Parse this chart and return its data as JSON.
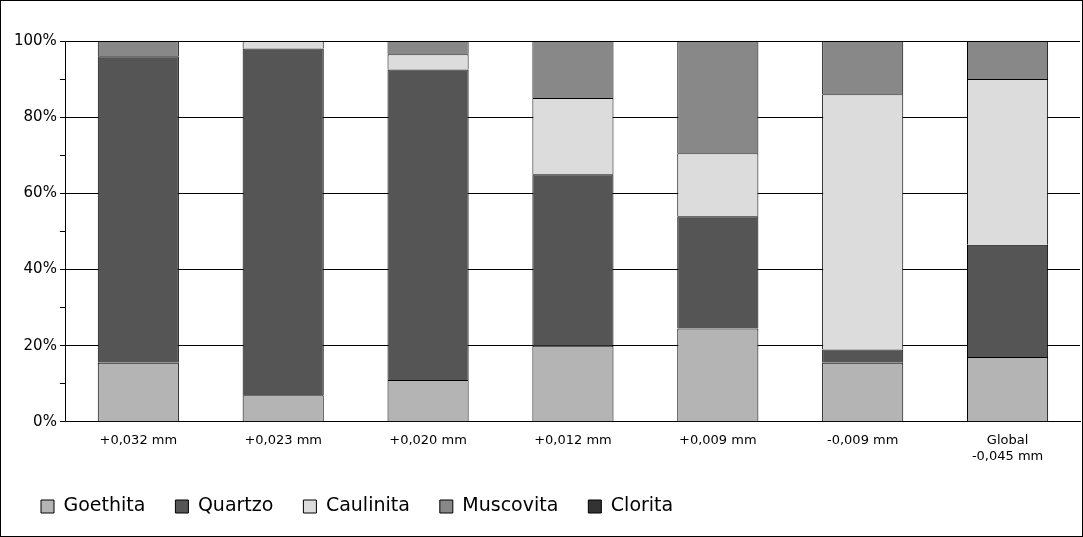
{
  "chart_data": {
    "type": "bar",
    "stacked": true,
    "categories": [
      "+0,032 mm",
      "+0,023 mm",
      "+0,020 mm",
      "+0,012 mm",
      "+0,009 mm",
      "-0,009 mm",
      "Global\n-0,045 mm"
    ],
    "series": [
      {
        "name": "Goethita",
        "color": "#b4b4b4",
        "values": [
          15.5,
          7,
          11,
          20,
          24.5,
          15.5,
          17
        ]
      },
      {
        "name": "Quartzo",
        "color": "#555555",
        "values": [
          80.5,
          91,
          81.5,
          45,
          29.5,
          3.5,
          29.5
        ]
      },
      {
        "name": "Caulinita",
        "color": "#dcdcdc",
        "values": [
          0,
          2,
          4,
          20,
          16.5,
          67,
          43.5
        ]
      },
      {
        "name": "Muscovita",
        "color": "#888888",
        "values": [
          4,
          0,
          3.5,
          15,
          29.5,
          14,
          10
        ]
      },
      {
        "name": "Clorita",
        "color": "#333333",
        "values": [
          0,
          0,
          0,
          0,
          0,
          0,
          0
        ]
      }
    ],
    "ylim": [
      0,
      100
    ],
    "yticks": [
      {
        "value": 0,
        "label": "0%"
      },
      {
        "value": 10,
        "label": null
      },
      {
        "value": 20,
        "label": "20%"
      },
      {
        "value": 30,
        "label": null
      },
      {
        "value": 40,
        "label": "40%"
      },
      {
        "value": 50,
        "label": null
      },
      {
        "value": 60,
        "label": "60%"
      },
      {
        "value": 70,
        "label": null
      },
      {
        "value": 80,
        "label": "80%"
      },
      {
        "value": 90,
        "label": null
      },
      {
        "value": 100,
        "label": "100%"
      }
    ],
    "grid": "y",
    "legend": "bottom"
  }
}
